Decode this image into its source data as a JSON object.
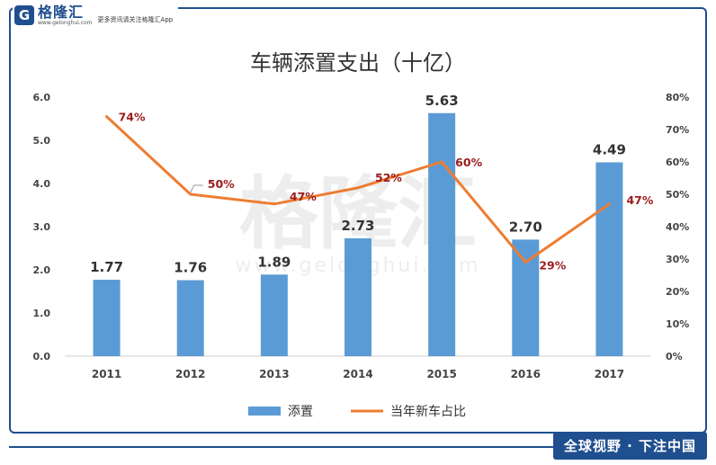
{
  "brand": {
    "logo_letter": "G",
    "name": "格隆汇",
    "domain": "www.gelonghui.com",
    "slogan": "更多资讯请关注格隆汇App",
    "watermark_text": "格隆汇",
    "watermark_url": "www.gelonghui.com",
    "footer_slogan": "全球视野 · 下注中国",
    "primary_color": "#1f4f8f"
  },
  "chart_data": {
    "type": "bar",
    "title": "车辆添置支出（十亿）",
    "categories": [
      "2011",
      "2012",
      "2013",
      "2014",
      "2015",
      "2016",
      "2017"
    ],
    "series": [
      {
        "name": "添置",
        "type": "bar",
        "axis": "left",
        "color": "#5b9bd5",
        "values": [
          1.77,
          1.76,
          1.89,
          2.73,
          5.63,
          2.7,
          4.49
        ],
        "labels": [
          "1.77",
          "1.76",
          "1.89",
          "2.73",
          "5.63",
          "2.70",
          "4.49"
        ]
      },
      {
        "name": "当年新车占比",
        "type": "line",
        "axis": "right",
        "color": "#ed7d31",
        "values": [
          74,
          50,
          47,
          52,
          60,
          29,
          47
        ],
        "labels": [
          "74%",
          "50%",
          "47%",
          "52%",
          "60%",
          "29%",
          "47%"
        ]
      }
    ],
    "y_left": {
      "min": 0,
      "max": 6,
      "ticks": [
        "0.0",
        "1.0",
        "2.0",
        "3.0",
        "4.0",
        "5.0",
        "6.0"
      ]
    },
    "y_right": {
      "min": 0,
      "max": 80,
      "ticks": [
        "0%",
        "10%",
        "20%",
        "30%",
        "40%",
        "50%",
        "60%",
        "70%",
        "80%"
      ]
    },
    "line_label_color": "#9b1c1c",
    "legend": {
      "placement": "bottom"
    },
    "grid": false
  }
}
